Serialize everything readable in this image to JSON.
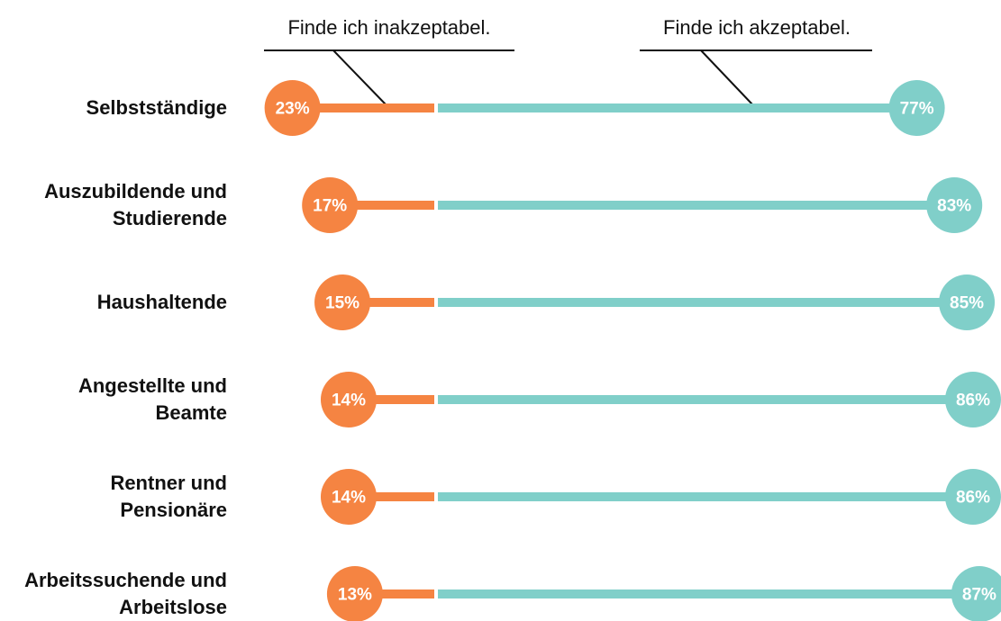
{
  "chart_data": {
    "type": "dumbbell",
    "categories": [
      "Selbstständige",
      "Auszubildende und Studierende",
      "Haushaltende",
      "Angestellte und Beamte",
      "Rentner und Pensionäre",
      "Arbeitssuchende und Arbeitslose"
    ],
    "series": [
      {
        "name": "Finde ich inakzeptabel.",
        "color": "#f58442",
        "values": [
          23,
          17,
          15,
          14,
          14,
          13
        ],
        "value_labels": [
          "23%",
          "17%",
          "15%",
          "14%",
          "14%",
          "13%"
        ]
      },
      {
        "name": "Finde ich akzeptabel.",
        "color": "#80cfc9",
        "values": [
          77,
          83,
          85,
          86,
          86,
          87
        ],
        "value_labels": [
          "77%",
          "83%",
          "85%",
          "86%",
          "86%",
          "87%"
        ]
      }
    ]
  }
}
